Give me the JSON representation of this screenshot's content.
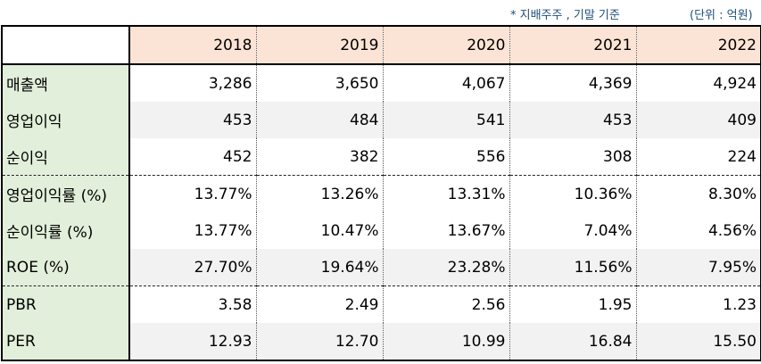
{
  "notes": {
    "basis": "* 지배주주 , 기말 기준",
    "unit": "(단위 : 억원)"
  },
  "table": {
    "years": [
      "2018",
      "2019",
      "2020",
      "2021",
      "2022"
    ],
    "rows": [
      {
        "label": "매출액",
        "values": [
          "3,286",
          "3,650",
          "4,067",
          "4,369",
          "4,924"
        ]
      },
      {
        "label": "영업이익",
        "values": [
          "453",
          "484",
          "541",
          "453",
          "409"
        ]
      },
      {
        "label": "순이익",
        "values": [
          "452",
          "382",
          "556",
          "308",
          "224"
        ]
      },
      {
        "label": "영업이익률 (%)",
        "values": [
          "13.77%",
          "13.26%",
          "13.31%",
          "10.36%",
          "8.30%"
        ]
      },
      {
        "label": "순이익률 (%)",
        "values": [
          "13.77%",
          "10.47%",
          "13.67%",
          "7.04%",
          "4.56%"
        ]
      },
      {
        "label": "ROE (%)",
        "values": [
          "27.70%",
          "19.64%",
          "23.28%",
          "11.56%",
          "7.95%"
        ]
      },
      {
        "label": "PBR",
        "values": [
          "3.58",
          "2.49",
          "2.56",
          "1.95",
          "1.23"
        ]
      },
      {
        "label": "PER",
        "values": [
          "12.93",
          "12.70",
          "10.99",
          "16.84",
          "15.50"
        ]
      }
    ]
  }
}
